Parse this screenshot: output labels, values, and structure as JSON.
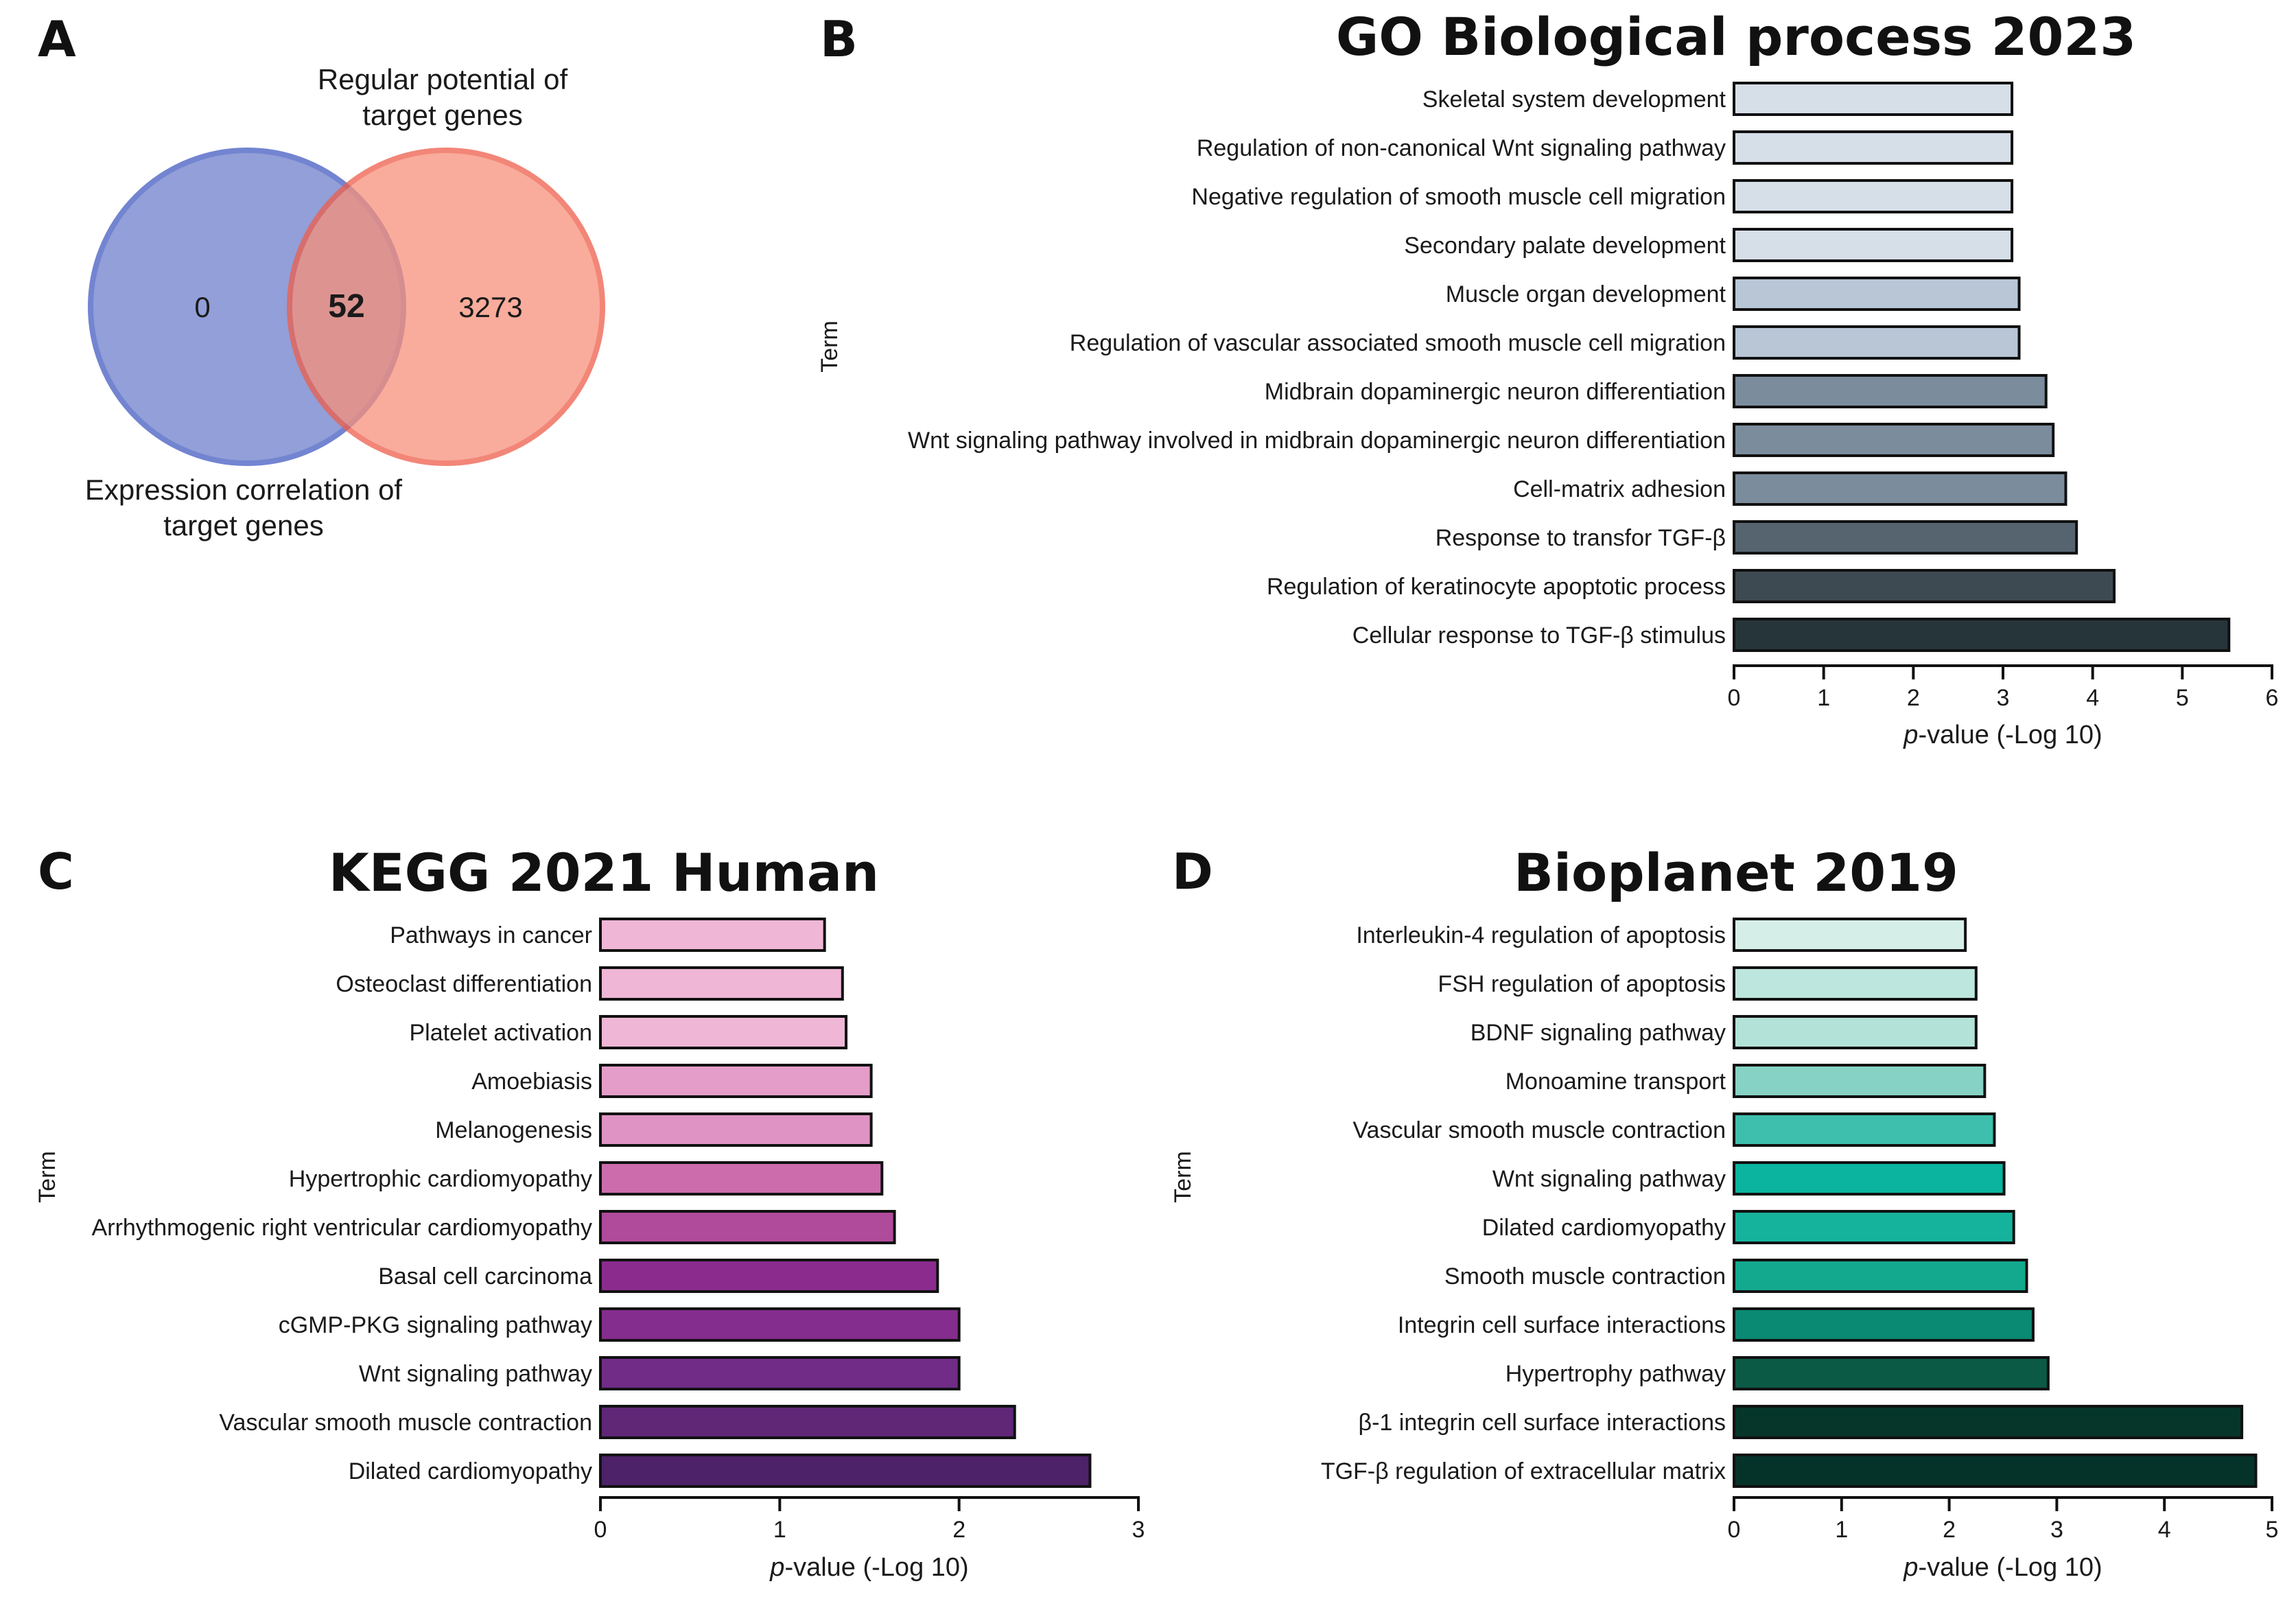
{
  "panels": {
    "A": "A",
    "B": "B",
    "C": "C",
    "D": "D"
  },
  "venn": {
    "label_top_line1": "Regular potential of",
    "label_top_line2": "target genes",
    "label_bottom_line1": "Expression correlation of",
    "label_bottom_line2": "target genes",
    "left_only": "0",
    "overlap": "52",
    "right_only": "3273",
    "left_color": "#7f8fd2",
    "right_color": "#f7917a",
    "left_stroke": "#5b6fc9",
    "right_stroke": "#ee5e4b"
  },
  "chart_data": [
    {
      "id": "B",
      "type": "bar",
      "orientation": "horizontal",
      "title": "GO Biological process 2023",
      "ylabel": "Term",
      "xlabel_italic": "p",
      "xlabel_rest": "-value (-Log 10)",
      "xlim": [
        0,
        6
      ],
      "xticks": [
        "0",
        "1",
        "2",
        "3",
        "4",
        "5",
        "6"
      ],
      "categories": [
        "Skeletal system development",
        "Regulation of non-canonical Wnt signaling pathway",
        "Negative regulation of smooth muscle cell migration",
        "Secondary palate development",
        "Muscle organ development",
        "Regulation of vascular associated smooth muscle cell migration",
        "Midbrain dopaminergic neuron differentiation",
        "Wnt signaling pathway involved in midbrain dopaminergic neuron differentiation",
        "Cell-matrix adhesion",
        "Response to transfor TGF-β",
        "Regulation of keratinocyte apoptotic process",
        "Cellular response to TGF-β stimulus"
      ],
      "values": [
        3.1,
        3.1,
        3.1,
        3.1,
        3.18,
        3.18,
        3.48,
        3.56,
        3.7,
        3.82,
        4.24,
        5.52
      ],
      "colors": [
        "#d6dee8",
        "#d6dee8",
        "#d6dee8",
        "#d6dee8",
        "#b8c6d6",
        "#b8c6d6",
        "#7b8c9c",
        "#7b8c9c",
        "#7b8c9c",
        "#56646f",
        "#3e4a52",
        "#26353a"
      ]
    },
    {
      "id": "C",
      "type": "bar",
      "orientation": "horizontal",
      "title": "KEGG 2021 Human",
      "ylabel": "Term",
      "xlabel_italic": "p",
      "xlabel_rest": "-value (-Log 10)",
      "xlim": [
        0,
        3
      ],
      "xticks": [
        "0",
        "1",
        "2",
        "3"
      ],
      "categories": [
        "Pathways in cancer",
        "Osteoclast differentiation",
        "Platelet activation",
        "Amoebiasis",
        "Melanogenesis",
        "Hypertrophic cardiomyopathy",
        "Arrhythmogenic right ventricular cardiomyopathy",
        "Basal cell carcinoma",
        "cGMP-PKG signaling pathway",
        "Wnt signaling pathway",
        "Vascular smooth muscle contraction",
        "Dilated cardiomyopathy"
      ],
      "values": [
        1.25,
        1.35,
        1.37,
        1.51,
        1.51,
        1.57,
        1.64,
        1.88,
        2.0,
        2.0,
        2.31,
        2.73
      ],
      "colors": [
        "#efb6d6",
        "#efb6d6",
        "#efb6d6",
        "#e49dc8",
        "#df93c4",
        "#cc6cad",
        "#b04a9b",
        "#8b2b8e",
        "#842d8e",
        "#702c87",
        "#5f2776",
        "#4d2268"
      ]
    },
    {
      "id": "D",
      "type": "bar",
      "orientation": "horizontal",
      "title": "Bioplanet 2019",
      "ylabel": "Term",
      "xlabel_italic": "p",
      "xlabel_rest": "-value (-Log 10)",
      "xlim": [
        0,
        5
      ],
      "xticks": [
        "0",
        "1",
        "2",
        "3",
        "4",
        "5"
      ],
      "categories": [
        "Interleukin-4 regulation of apoptosis",
        "FSH regulation of apoptosis",
        "BDNF signaling pathway",
        "Monoamine transport",
        "Vascular smooth muscle contraction",
        "Wnt signaling pathway",
        "Dilated cardiomyopathy",
        "Smooth muscle contraction",
        "Integrin cell surface interactions",
        "Hypertrophy pathway",
        "β-1 integrin cell surface interactions",
        "TGF-β regulation of extracellular matrix"
      ],
      "values": [
        2.15,
        2.25,
        2.25,
        2.33,
        2.42,
        2.51,
        2.6,
        2.72,
        2.78,
        2.92,
        4.72,
        4.85
      ],
      "colors": [
        "#d6eee8",
        "#bde6de",
        "#b3e2d8",
        "#86d2c4",
        "#3ebfad",
        "#0ab49e",
        "#16b39c",
        "#13a98f",
        "#0a8a72",
        "#0b5a46",
        "#06362a",
        "#05332a"
      ]
    }
  ]
}
